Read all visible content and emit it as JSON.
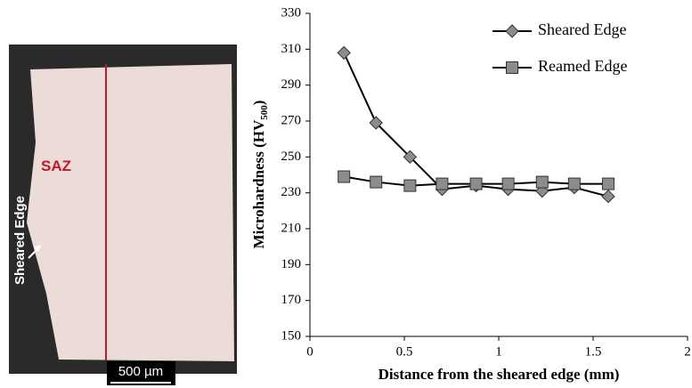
{
  "micrograph": {
    "region_label": "SAZ",
    "edge_label": "Sheared Edge",
    "scale_bar": "500 µm"
  },
  "chart_data": {
    "type": "line",
    "xlabel": "Distance from the sheared edge (mm)",
    "ylabel": {
      "text": "Microhardness (HV",
      "subscript": "500",
      "close": ")"
    },
    "x": [
      0.18,
      0.35,
      0.53,
      0.7,
      0.88,
      1.05,
      1.23,
      1.4,
      1.58
    ],
    "series": [
      {
        "name": "Sheared Edge",
        "color": "#8c8c8c",
        "marker": "diamond",
        "values": [
          308,
          269,
          250,
          232,
          234,
          232,
          231,
          233,
          228
        ]
      },
      {
        "name": "Reamed Edge",
        "color": "#8c8c8c",
        "marker": "square",
        "values": [
          239,
          236,
          234,
          235,
          235,
          235,
          236,
          235,
          235
        ]
      }
    ],
    "xlim": [
      0,
      2
    ],
    "xticks": [
      0,
      0.5,
      1,
      1.5,
      2
    ],
    "ylim": [
      150,
      330
    ],
    "yticks": [
      150,
      170,
      190,
      210,
      230,
      250,
      270,
      290,
      310,
      330
    ],
    "grid": false,
    "legend": "top-right"
  }
}
